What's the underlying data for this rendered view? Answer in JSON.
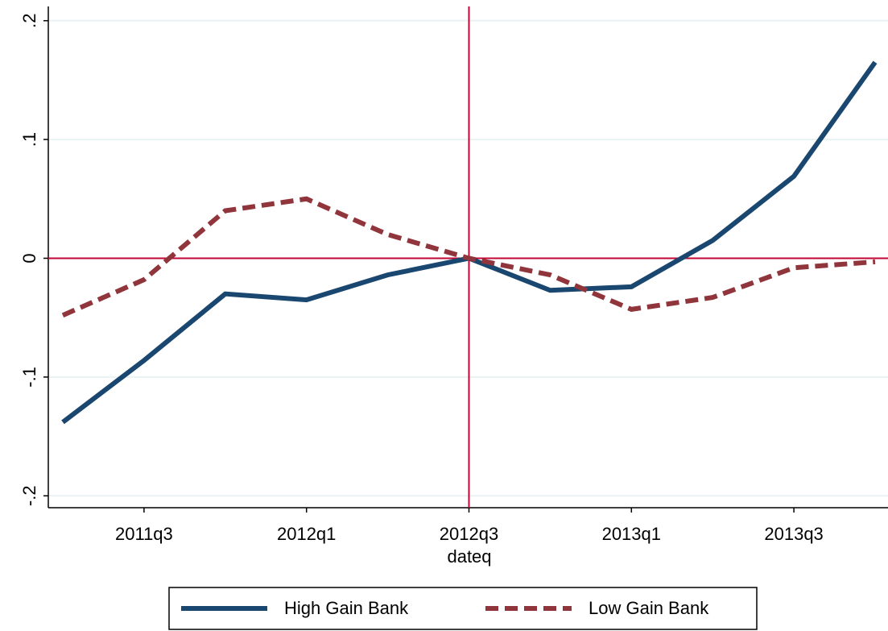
{
  "chart_data": {
    "type": "line",
    "x_label": "dateq",
    "categories": [
      null,
      "2011q3",
      null,
      "2012q1",
      null,
      "2012q3",
      null,
      "2013q1",
      null,
      "2013q3",
      null
    ],
    "series": [
      {
        "name": "High Gain Bank",
        "color": "#1a476f",
        "dash": false,
        "values": [
          -0.138,
          -0.086,
          -0.03,
          -0.035,
          -0.014,
          0,
          -0.027,
          -0.024,
          0.015,
          0.069,
          0.165
        ]
      },
      {
        "name": "Low Gain Bank",
        "color": "#90353b",
        "dash": true,
        "values": [
          -0.048,
          -0.018,
          0.04,
          0.05,
          0.02,
          0,
          -0.014,
          -0.043,
          -0.033,
          -0.008,
          -0.003
        ]
      }
    ],
    "ylim": [
      -0.21,
      0.212
    ],
    "yticks": [
      {
        "value": -0.2,
        "label": "-.2"
      },
      {
        "value": -0.1,
        "label": "-.1"
      },
      0,
      {
        "value": 0.1,
        "label": ".1"
      },
      {
        "value": 0.2,
        "label": ".2"
      }
    ],
    "grid": true,
    "xline": "2012q3",
    "yline": 0,
    "refline_color": "#c10534",
    "legend": "bottom"
  }
}
